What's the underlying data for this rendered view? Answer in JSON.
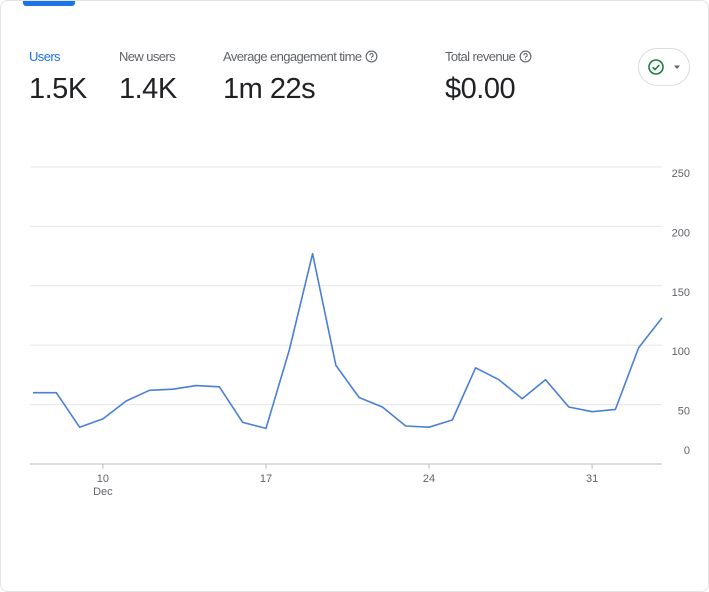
{
  "metrics": [
    {
      "label": "Users",
      "value": "1.5K"
    },
    {
      "label": "New users",
      "value": "1.4K"
    },
    {
      "label": "Average engagement time",
      "value": "1m 22s"
    },
    {
      "label": "Total revenue",
      "value": "$0.00"
    }
  ],
  "chart_data": {
    "type": "line",
    "categories": [
      null,
      null,
      null,
      "10",
      null,
      null,
      null,
      null,
      null,
      null,
      "17",
      null,
      null,
      null,
      null,
      null,
      null,
      "24",
      null,
      null,
      null,
      null,
      null,
      null,
      "31",
      null,
      null,
      null
    ],
    "x_month_label": "Dec",
    "series": [
      {
        "name": "Users",
        "color": "#4a7fd9",
        "values": [
          60,
          60,
          31,
          38,
          53,
          62,
          63,
          66,
          65,
          35,
          30,
          96,
          177,
          83,
          56,
          48,
          32,
          31,
          37,
          81,
          71,
          55,
          71,
          48,
          44,
          46,
          98,
          123
        ]
      }
    ],
    "ylim": [
      0,
      250
    ],
    "yticks": [
      0,
      50,
      100,
      150,
      200,
      250
    ],
    "grid": true
  }
}
